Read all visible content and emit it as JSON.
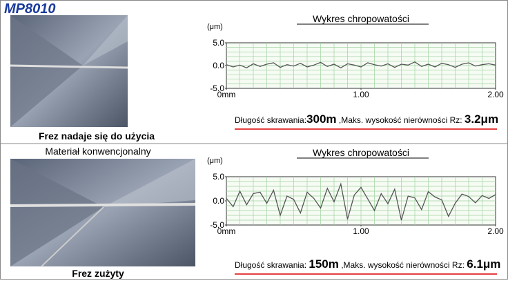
{
  "header": {
    "logo": "MP8010"
  },
  "panels": [
    {
      "caption": "Frez nadaje się do użycia"
    },
    {
      "label": "Materiał konwencjonalny",
      "caption": "Frez zużyty"
    }
  ],
  "footers": [
    {
      "label1": "Długość skrawania:",
      "value1": "300m",
      "label2": " ,Maks. wysokość nierówności Rz: ",
      "value2": "3.2μm"
    },
    {
      "label1": "Długość skrawania: ",
      "value1": "150m",
      "label2": " ,Maks. wysokość nierówności Rz: ",
      "value2": "6.1μm"
    }
  ],
  "chart_data": [
    {
      "type": "line",
      "title": "Wykres chropowatości",
      "y_label": "(μm)",
      "color": "#555555",
      "grid": true,
      "x": [
        0,
        0.05,
        0.1,
        0.15,
        0.2,
        0.25,
        0.3,
        0.35,
        0.4,
        0.45,
        0.5,
        0.55,
        0.6,
        0.65,
        0.7,
        0.75,
        0.8,
        0.85,
        0.9,
        0.95,
        1,
        1.05,
        1.1,
        1.15,
        1.2,
        1.25,
        1.3,
        1.35,
        1.4,
        1.45,
        1.5,
        1.55,
        1.6,
        1.65,
        1.7,
        1.75,
        1.8,
        1.85,
        1.9,
        1.95,
        2
      ],
      "values": [
        0.2,
        -0.3,
        0.1,
        -0.5,
        0.4,
        -0.2,
        0.3,
        0.6,
        -0.4,
        0.2,
        -0.1,
        0.5,
        -0.3,
        0.1,
        0.7,
        -0.2,
        0.3,
        -0.5,
        0.4,
        0.1,
        -0.3,
        0.6,
        0.2,
        -0.1,
        0.4,
        -0.4,
        0.3,
        0.1,
        0.8,
        -0.2,
        0.3,
        -0.3,
        0.5,
        0.2,
        -0.4,
        0.3,
        0.6,
        -0.1,
        0.2,
        0.4,
        0.1
      ],
      "xlim": [
        0,
        2
      ],
      "xticks": [
        {
          "value": 0,
          "label": "0mm"
        },
        {
          "value": 1,
          "label": "1.00"
        },
        {
          "value": 2,
          "label": "2.00"
        }
      ],
      "ylim": [
        -5,
        5
      ],
      "yticks": [
        {
          "value": -5,
          "label": "-5.0"
        },
        {
          "value": 0,
          "label": "0.0"
        },
        {
          "value": 5,
          "label": "5.0"
        }
      ]
    },
    {
      "type": "line",
      "title": "Wykres chropowatości",
      "y_label": "(μm)",
      "color": "#555555",
      "grid": true,
      "x": [
        0,
        0.05,
        0.1,
        0.15,
        0.2,
        0.25,
        0.3,
        0.35,
        0.4,
        0.45,
        0.5,
        0.55,
        0.6,
        0.65,
        0.7,
        0.75,
        0.8,
        0.85,
        0.9,
        0.95,
        1,
        1.05,
        1.1,
        1.15,
        1.2,
        1.25,
        1.3,
        1.35,
        1.4,
        1.45,
        1.5,
        1.55,
        1.6,
        1.65,
        1.7,
        1.75,
        1.8,
        1.85,
        1.9,
        1.95,
        2
      ],
      "values": [
        0.5,
        -1.2,
        2.0,
        -0.8,
        1.5,
        1.8,
        -0.5,
        2.2,
        -3.0,
        1.0,
        0.3,
        -2.5,
        1.8,
        0.5,
        -1.5,
        2.6,
        -0.2,
        3.5,
        -3.8,
        1.2,
        2.8,
        0.4,
        -2.0,
        1.5,
        -0.6,
        2.4,
        -4.0,
        1.0,
        0.6,
        -1.8,
        1.9,
        0.8,
        0.2,
        -3.2,
        -0.5,
        1.4,
        0.9,
        -0.4,
        1.1,
        0.5,
        1.3
      ],
      "xlim": [
        0,
        2
      ],
      "xticks": [
        {
          "value": 0,
          "label": "0mm"
        },
        {
          "value": 1,
          "label": "1.00"
        },
        {
          "value": 2,
          "label": "2.00"
        }
      ],
      "ylim": [
        -5,
        5
      ],
      "yticks": [
        {
          "value": -5,
          "label": "-5.0"
        },
        {
          "value": 0,
          "label": "0.0"
        },
        {
          "value": 5,
          "label": "5.0"
        }
      ]
    }
  ]
}
